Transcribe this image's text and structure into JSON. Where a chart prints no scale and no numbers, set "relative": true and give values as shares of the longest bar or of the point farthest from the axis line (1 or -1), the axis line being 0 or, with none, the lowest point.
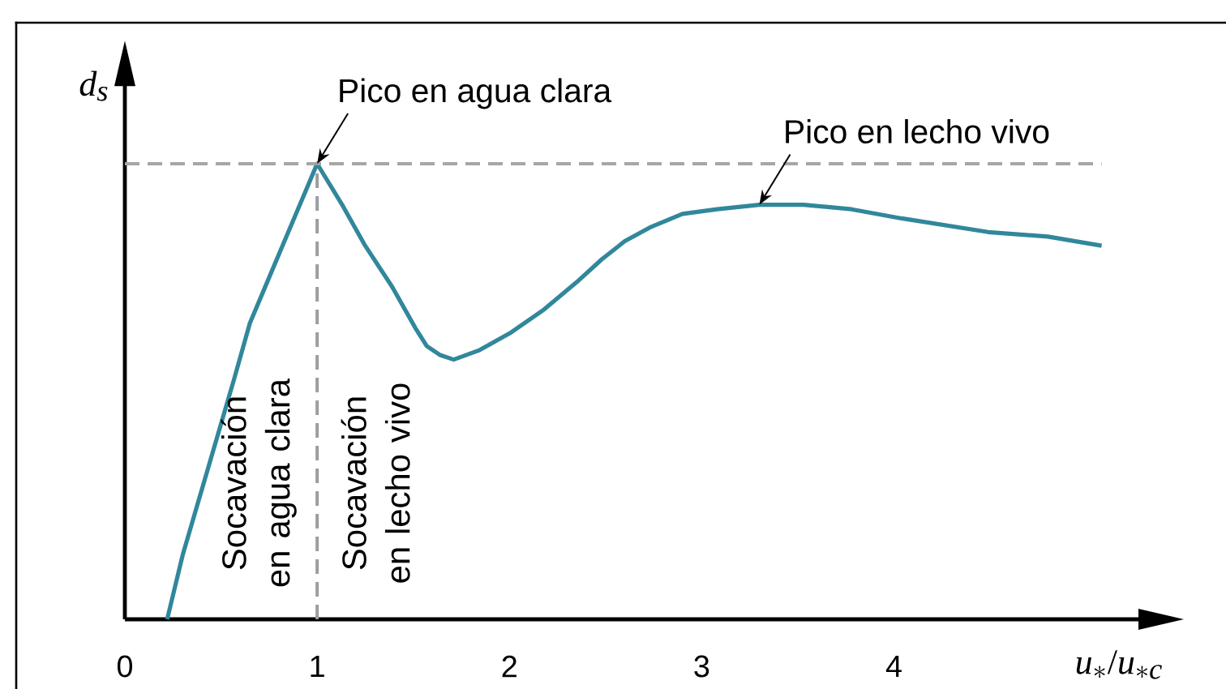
{
  "chart_data": {
    "type": "line",
    "relative": true,
    "xlabel": "u_*/u_{*c}",
    "ylabel": "d_s",
    "x": [
      0.22,
      0.3,
      0.39,
      0.48,
      0.57,
      0.65,
      0.74,
      0.83,
      0.92,
      1.0,
      1.13,
      1.25,
      1.39,
      1.51,
      1.57,
      1.64,
      1.71,
      1.84,
      2.01,
      2.18,
      2.35,
      2.48,
      2.6,
      2.73,
      2.9,
      3.08,
      3.3,
      3.53,
      3.78,
      4.04,
      4.49,
      4.8,
      5.08
    ],
    "values": [
      0,
      0.14,
      0.27,
      0.4,
      0.53,
      0.65,
      0.74,
      0.83,
      0.92,
      1.0,
      0.91,
      0.82,
      0.73,
      0.64,
      0.6,
      0.58,
      0.57,
      0.59,
      0.63,
      0.68,
      0.74,
      0.79,
      0.83,
      0.86,
      0.89,
      0.9,
      0.91,
      0.91,
      0.9,
      0.88,
      0.85,
      0.84,
      0.82
    ],
    "color": "#31879b",
    "xlim": [
      0,
      5.28
    ],
    "xticks": [
      0,
      1,
      2,
      3,
      4
    ],
    "ref_lines": [
      {
        "axis": "y",
        "value": 1,
        "color": "#a6a6a6",
        "line_style": "dashed"
      },
      {
        "axis": "x",
        "value": 1,
        "color": "#9e9e9e",
        "line_style": "dashed"
      }
    ],
    "annotations": [
      {
        "text": "Pico en agua clara",
        "x": 1,
        "y": 1
      },
      {
        "text": "Pico en lecho vivo",
        "x": 3.3,
        "y": 0.91
      },
      "Socavación en agua clara",
      "Socavación en lecho vivo"
    ]
  }
}
